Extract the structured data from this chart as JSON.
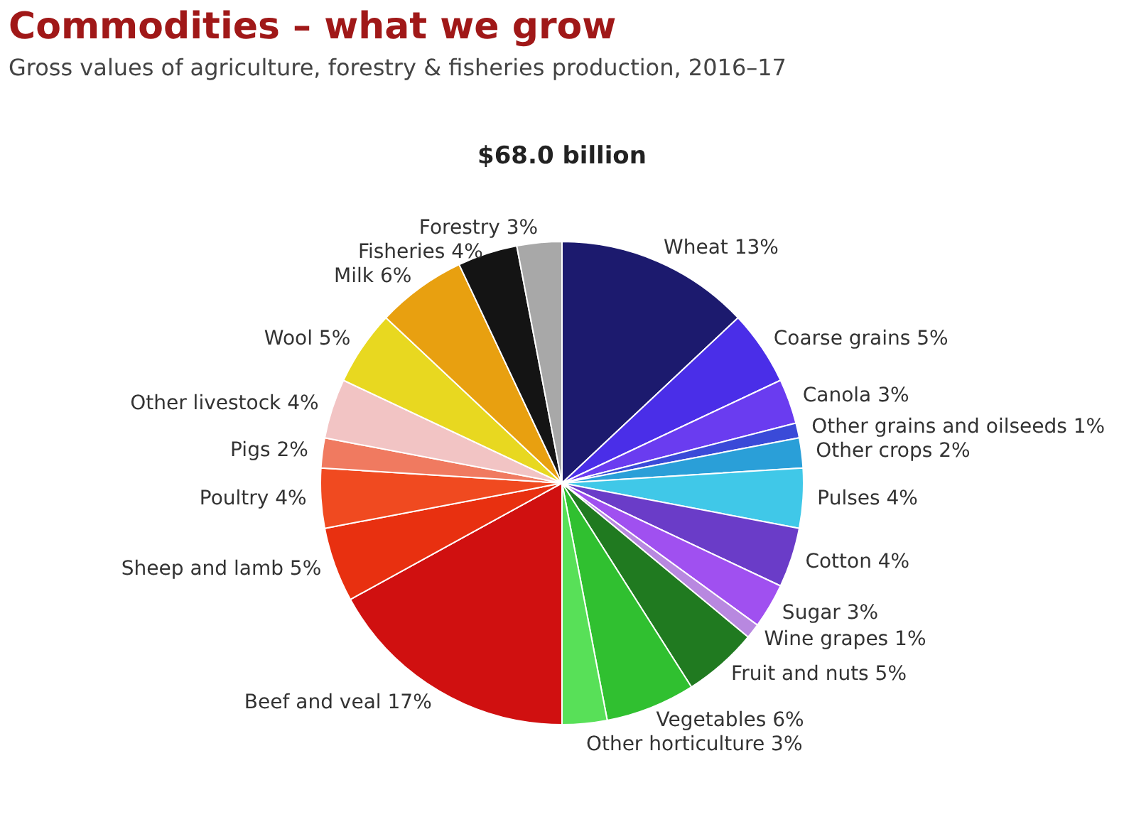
{
  "chart_data": {
    "type": "pie",
    "title": "Commodities – what we grow",
    "subtitle": "Gross values of agriculture, forestry & fisheries production, 2016–17",
    "annotations": [
      "$68.0 billion"
    ],
    "categories": [
      "Wheat",
      "Coarse grains",
      "Canola",
      "Other grains and oilseeds",
      "Other crops",
      "Pulses",
      "Cotton",
      "Sugar",
      "Wine grapes",
      "Fruit and nuts",
      "Vegetables",
      "Other horticulture",
      "Beef and veal",
      "Sheep and lamb",
      "Poultry",
      "Pigs",
      "Other livestock",
      "Wool",
      "Milk",
      "Fisheries",
      "Forestry"
    ],
    "values": [
      13,
      5,
      3,
      1,
      2,
      4,
      4,
      3,
      1,
      5,
      6,
      3,
      17,
      5,
      4,
      2,
      4,
      5,
      6,
      4,
      3
    ],
    "value_labels": [
      "13%",
      "5%",
      "3%",
      "1%",
      "2%",
      "4%",
      "4%",
      "3%",
      "1%",
      "5%",
      "6%",
      "3%",
      "17%",
      "5%",
      "4%",
      "2%",
      "4%",
      "5%",
      "6%",
      "4%",
      "3%"
    ],
    "colors": [
      "#1c1a6e",
      "#4a2ee8",
      "#6a3cf0",
      "#3a4ad8",
      "#2a9fd8",
      "#40c8e8",
      "#6a3cc8",
      "#a050f0",
      "#b888e0",
      "#207a20",
      "#30c030",
      "#58e058",
      "#d01010",
      "#e83010",
      "#f04a20",
      "#f07a60",
      "#f2c4c4",
      "#e8d820",
      "#e8a010",
      "#141414",
      "#a8a8a8"
    ],
    "legend": false
  }
}
